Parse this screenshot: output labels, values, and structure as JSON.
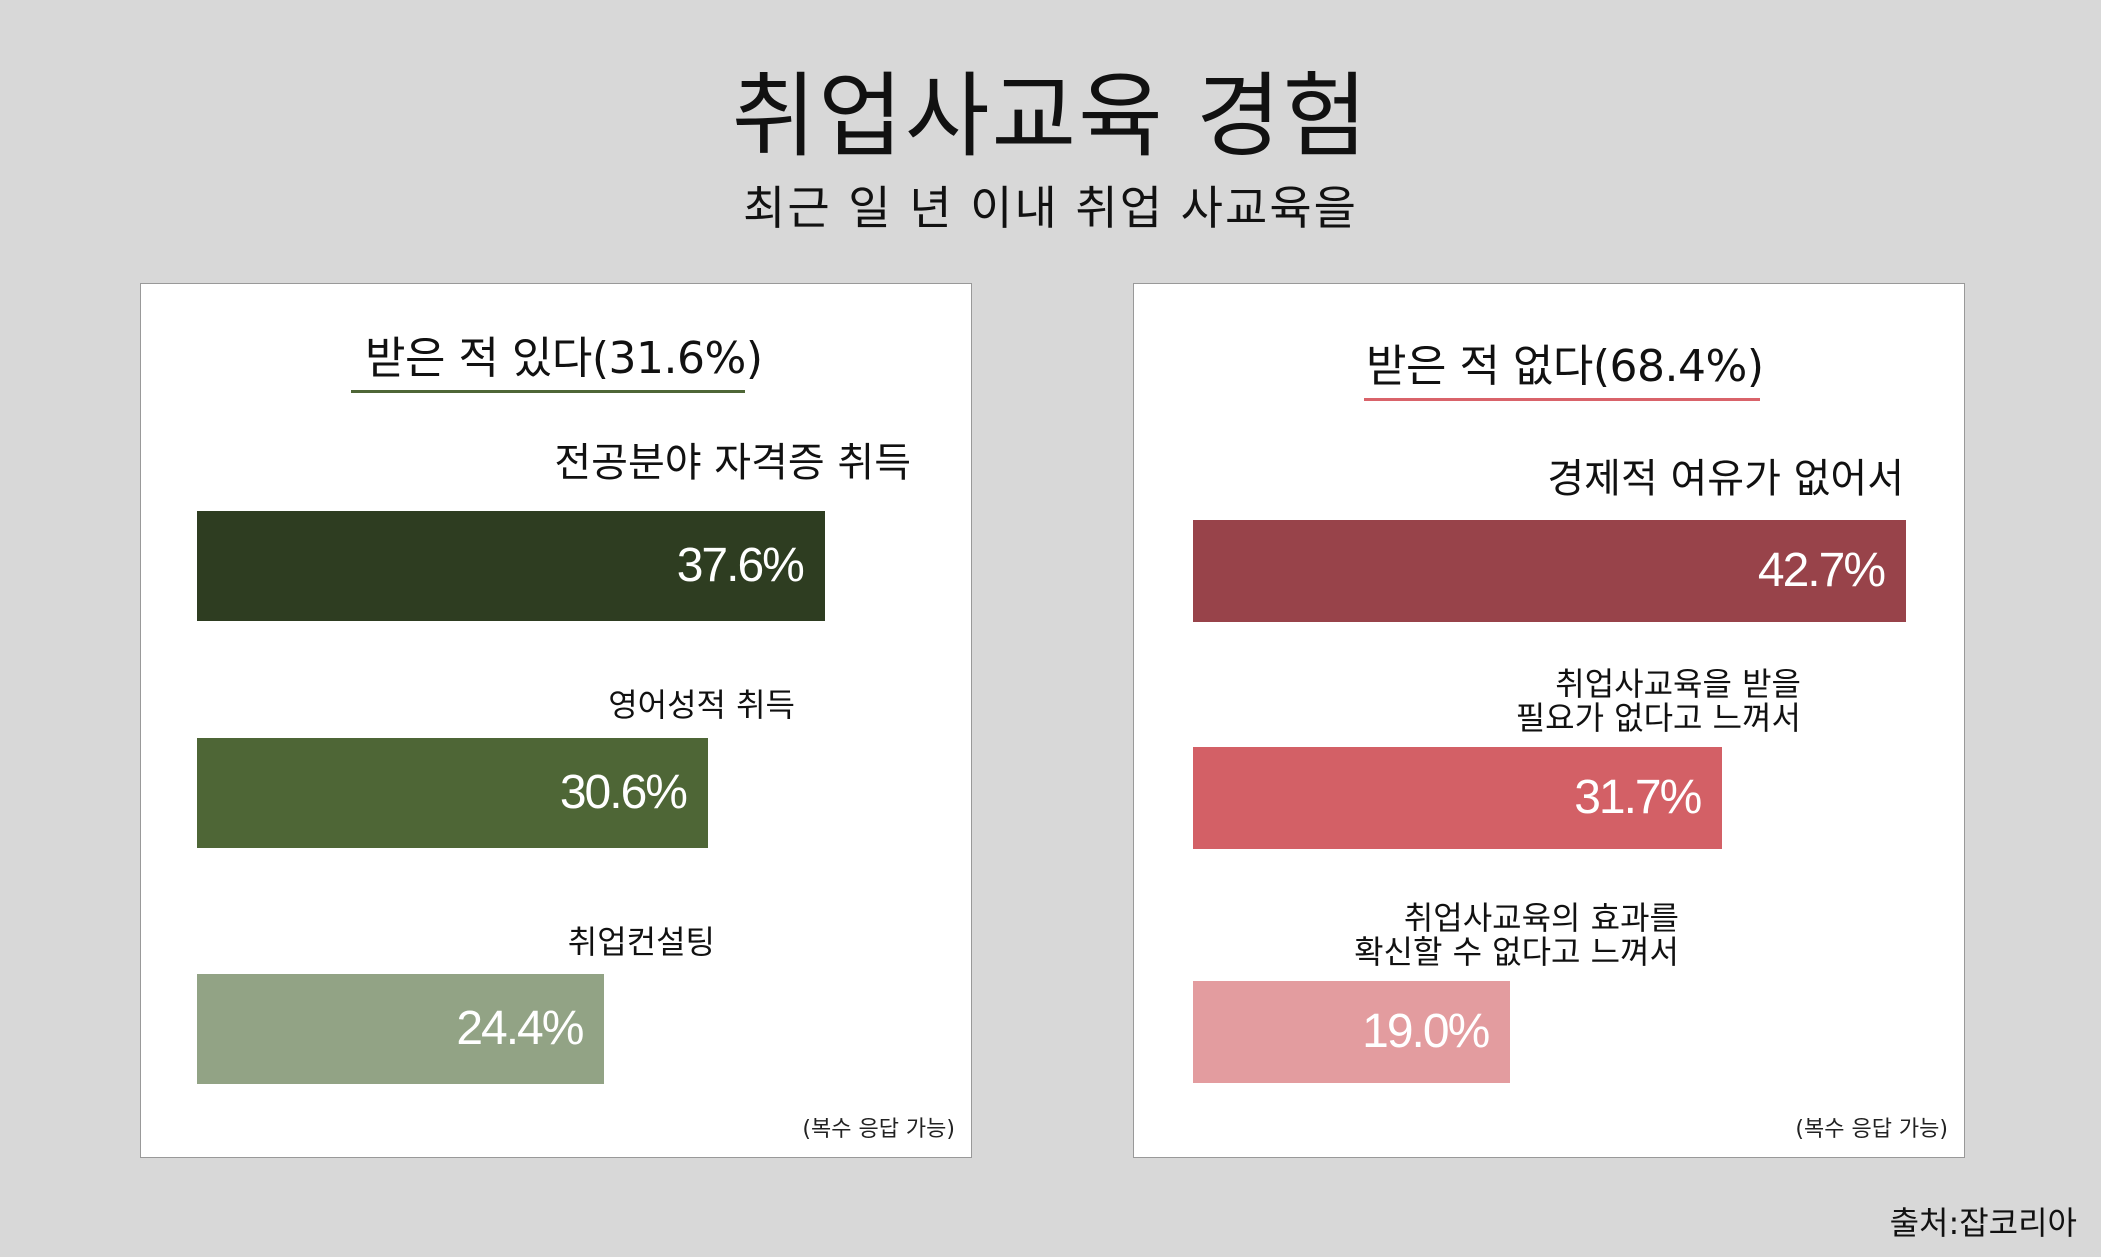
{
  "title": "취업사교육 경험",
  "subtitle": "최근 일 년 이내 취업 사교육을",
  "source": "출처:잡코리아",
  "colors": {
    "left_bars": [
      "#2e3d21",
      "#4e6636",
      "#92a385"
    ],
    "right_bars": [
      "#98434a",
      "#d36066",
      "#e39c9f"
    ],
    "left_underline": "#4e6636",
    "right_underline": "#d9636a"
  },
  "chart_data": [
    {
      "type": "bar",
      "orientation": "horizontal",
      "title": "받은 적 있다(31.6%)",
      "note": "(복수 응답 가능)",
      "xlim": [
        0,
        42.7
      ],
      "categories": [
        "전공분야 자격증 취득",
        "영어성적 취득",
        "취업컨설팅"
      ],
      "values": [
        37.6,
        30.6,
        24.4
      ],
      "value_labels": [
        "37.6%",
        "30.6%",
        "24.4%"
      ]
    },
    {
      "type": "bar",
      "orientation": "horizontal",
      "title": "받은 적 없다(68.4%)",
      "note": "(복수 응답 가능)",
      "xlim": [
        0,
        42.7
      ],
      "categories": [
        "경제적 여유가 없어서",
        "취업사교육을 받을\n필요가 없다고 느껴서",
        "취업사교육의 효과를\n확신할 수 없다고 느껴서"
      ],
      "values": [
        42.7,
        31.7,
        19.0
      ],
      "value_labels": [
        "42.7%",
        "31.7%",
        "19.0%"
      ]
    }
  ]
}
